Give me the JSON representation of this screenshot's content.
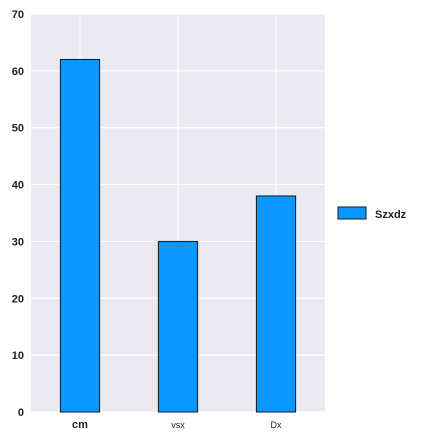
{
  "chart_data": {
    "type": "bar",
    "categories": [
      "cm",
      "vsx",
      "Dx"
    ],
    "series": [
      {
        "name": "Szxdz",
        "values": [
          62,
          30,
          38
        ],
        "color": "#0a96ff"
      }
    ],
    "title": "",
    "xlabel": "",
    "ylabel": "",
    "ylim": [
      0,
      70
    ],
    "yticks": [
      0,
      10,
      20,
      30,
      40,
      50,
      60,
      70
    ],
    "grid": true,
    "legend_position": "right",
    "plot_background": "#eaeaf2",
    "bar_edge_color": "#1a1a1a",
    "bold_categories": [
      "cm"
    ]
  }
}
